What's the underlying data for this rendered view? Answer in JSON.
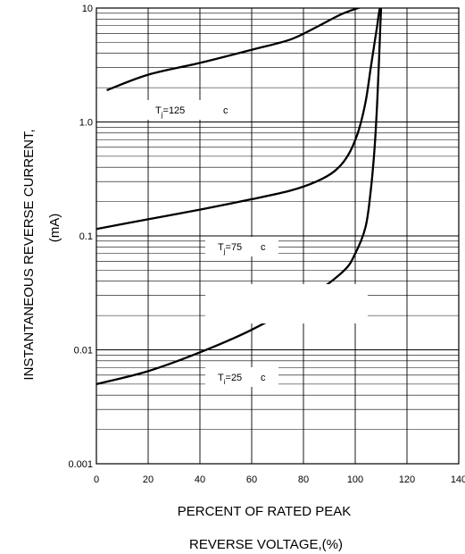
{
  "chart_data": {
    "type": "line",
    "title": "",
    "ylabel": "INSTANTANEOUS REVERSE CURRENT,",
    "ylabel_unit": "(mA)",
    "xlabel_line1": "PERCENT OF RATED PEAK",
    "xlabel_line2": "REVERSE VOLTAGE,(%)",
    "x_scale": "linear",
    "y_scale": "log",
    "xlim": [
      0,
      140
    ],
    "ylim": [
      0.001,
      10
    ],
    "x_ticks": [
      0,
      20,
      40,
      60,
      80,
      100,
      120,
      140
    ],
    "x_tick_labels": [
      "0",
      "20",
      "40",
      "60",
      "80",
      "100",
      "120",
      "140"
    ],
    "y_ticks": [
      0.001,
      0.01,
      0.1,
      1.0,
      10
    ],
    "y_tick_labels": [
      "0.001",
      "0.01",
      "0.1",
      "1.0",
      "10"
    ],
    "grid": true,
    "series": [
      {
        "name": "Tj=125 c",
        "label_main": "T",
        "label_sub": "j",
        "label_rest": "=125",
        "label_unit": "c",
        "x": [
          4,
          20,
          40,
          60,
          75,
          85,
          95,
          104
        ],
        "y": [
          1.9,
          2.6,
          3.3,
          4.3,
          5.3,
          6.8,
          8.9,
          10.5
        ]
      },
      {
        "name": "Tj=75 c",
        "label_main": "T",
        "label_sub": "j",
        "label_rest": "=75",
        "label_unit": "c",
        "x": [
          0,
          20,
          40,
          60,
          75,
          85,
          92,
          97,
          101,
          104,
          106,
          107.5,
          108.5,
          109,
          109.5
        ],
        "y": [
          0.115,
          0.14,
          0.17,
          0.21,
          0.25,
          0.3,
          0.37,
          0.5,
          0.8,
          1.5,
          3,
          5,
          7,
          8.5,
          10
        ]
      },
      {
        "name": "Ti=25 c",
        "label_main": "T",
        "label_sub": "i",
        "label_rest": "=25",
        "label_unit": "c",
        "x": [
          0,
          20,
          40,
          60,
          80,
          95,
          100,
          104,
          106,
          107.5,
          108.5,
          109.2,
          109.7,
          110
        ],
        "y": [
          0.005,
          0.0065,
          0.0095,
          0.015,
          0.027,
          0.048,
          0.07,
          0.12,
          0.25,
          0.6,
          1.5,
          3.5,
          7,
          10
        ]
      }
    ],
    "colors": {
      "line": "#000000",
      "grid": "#000000",
      "background": "#ffffff"
    }
  }
}
